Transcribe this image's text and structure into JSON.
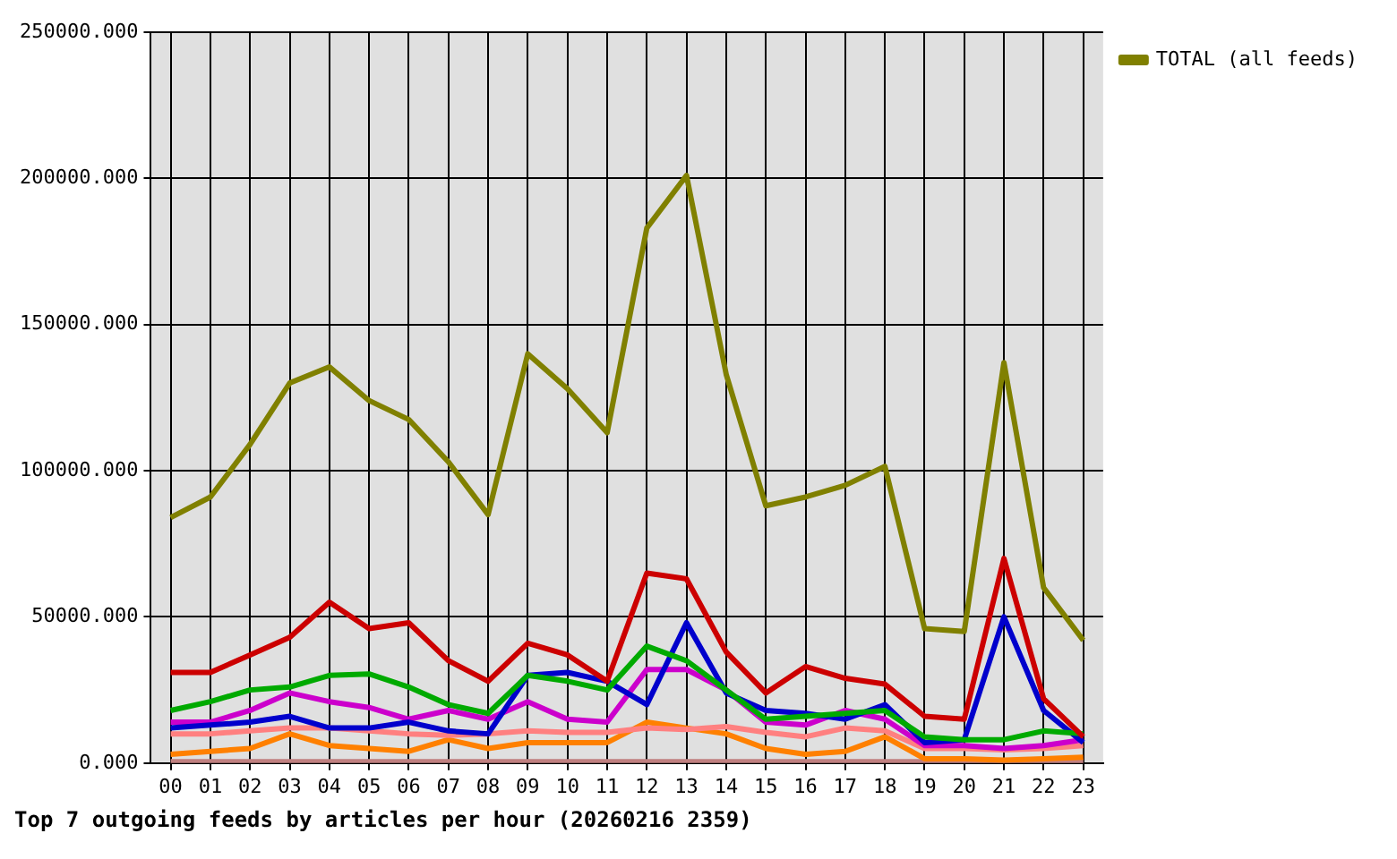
{
  "chart_data": {
    "type": "line",
    "title": "Top 7 outgoing feeds by articles per hour (20260216 2359)",
    "categories": [
      "00",
      "01",
      "02",
      "03",
      "04",
      "05",
      "06",
      "07",
      "08",
      "09",
      "10",
      "11",
      "12",
      "13",
      "14",
      "15",
      "16",
      "17",
      "18",
      "19",
      "20",
      "21",
      "22",
      "23"
    ],
    "series": [
      {
        "color": "#cc0000",
        "values": [
          31000,
          31000,
          37000,
          43000,
          55000,
          46000,
          48000,
          35000,
          28000,
          41000,
          37000,
          28000,
          65000,
          63000,
          38000,
          24000,
          33000,
          29000,
          27000,
          16000,
          15000,
          70000,
          22000,
          9000
        ]
      },
      {
        "color": "#00aa00",
        "values": [
          18000,
          21000,
          25000,
          26000,
          30000,
          30500,
          26000,
          20000,
          17000,
          30000,
          28000,
          25000,
          40000,
          35000,
          25000,
          15000,
          16000,
          17000,
          18000,
          9000,
          8000,
          8000,
          11000,
          10000
        ]
      },
      {
        "color": "#0000cc",
        "values": [
          12000,
          13000,
          14000,
          16000,
          12000,
          12000,
          14000,
          11000,
          10000,
          30000,
          31000,
          28000,
          20000,
          48000,
          24000,
          18000,
          17000,
          15000,
          20000,
          7000,
          8000,
          50000,
          18000,
          7000
        ]
      },
      {
        "color": "#cc00cc",
        "values": [
          14000,
          14000,
          18000,
          24000,
          21000,
          19000,
          15000,
          18000,
          15000,
          21000,
          15000,
          14000,
          32000,
          32000,
          25000,
          14000,
          13000,
          18000,
          15000,
          6000,
          6000,
          5000,
          6000,
          8000
        ]
      },
      {
        "color": "#ff8080",
        "values": [
          10000,
          10000,
          11000,
          12000,
          12000,
          11000,
          10000,
          9500,
          10000,
          11000,
          10500,
          10500,
          12000,
          11500,
          12500,
          10500,
          9000,
          12000,
          11000,
          5000,
          5000,
          4500,
          5000,
          6000
        ]
      },
      {
        "color": "#ff8000",
        "values": [
          3000,
          4000,
          5000,
          10000,
          6000,
          5000,
          4000,
          8000,
          5000,
          7000,
          7000,
          7000,
          14000,
          12000,
          10000,
          5000,
          3000,
          4000,
          9000,
          1500,
          1500,
          1000,
          1500,
          2000
        ]
      },
      {
        "color": "#c08080",
        "values": [
          500,
          500,
          500,
          500,
          500,
          500,
          500,
          500,
          500,
          500,
          500,
          500,
          500,
          500,
          500,
          500,
          500,
          500,
          500,
          500,
          500,
          500,
          500,
          500
        ]
      },
      {
        "name": "TOTAL (all feeds)",
        "color": "#808000",
        "values": [
          84000,
          91000,
          109000,
          130000,
          135500,
          124000,
          117500,
          103000,
          85000,
          140000,
          128000,
          113000,
          183000,
          201000,
          133000,
          88000,
          91000,
          95000,
          101500,
          46000,
          45000,
          137000,
          60000,
          42000
        ]
      }
    ],
    "ylim": [
      0,
      250000
    ],
    "yticks": [
      {
        "value": 0,
        "label": "0.000"
      },
      {
        "value": 50000,
        "label": "50000.000"
      },
      {
        "value": 100000,
        "label": "100000.000"
      },
      {
        "value": 150000,
        "label": "150000.000"
      },
      {
        "value": 200000,
        "label": "200000.000"
      },
      {
        "value": 250000,
        "label": "250000.000"
      }
    ],
    "grid": true,
    "legend": "top right",
    "marker": "none",
    "line_style": "solid"
  }
}
